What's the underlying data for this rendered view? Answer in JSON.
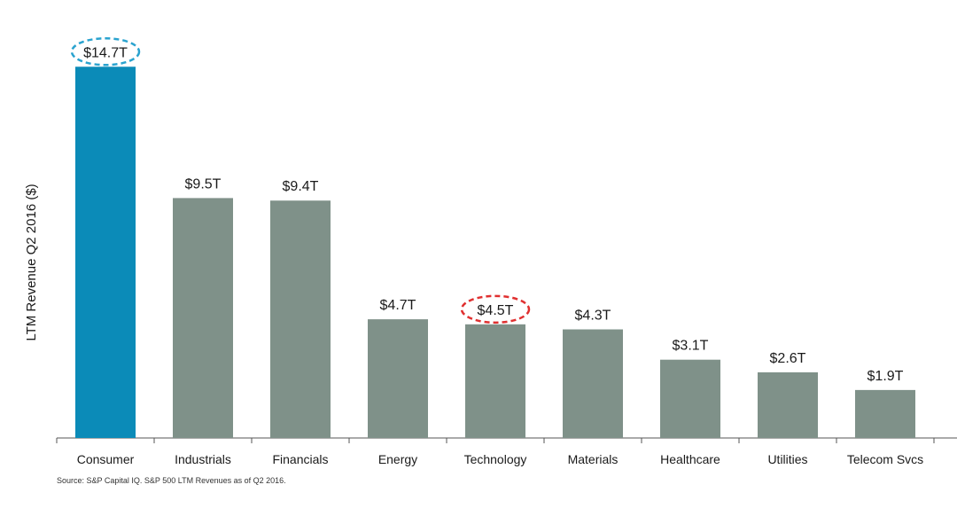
{
  "chart_data": {
    "type": "bar",
    "categories": [
      "Consumer",
      "Industrials",
      "Financials",
      "Energy",
      "Technology",
      "Materials",
      "Healthcare",
      "Utilities",
      "Telecom Svcs"
    ],
    "values": [
      14.7,
      9.5,
      9.4,
      4.7,
      4.5,
      4.3,
      3.1,
      2.6,
      1.9
    ],
    "data_labels": [
      "$14.7T",
      "$9.5T",
      "$9.4T",
      "$4.7T",
      "$4.5T",
      "$4.3T",
      "$3.1T",
      "$2.6T",
      "$1.9T"
    ],
    "ylabel": "LTM Revenue Q2 2016 ($)",
    "xlabel": "",
    "title": "",
    "ylim": [
      0,
      16.5
    ],
    "colors": {
      "default": "#7f9189",
      "highlight": "#0b8bb8",
      "highlight_circle": "#2aa3cf",
      "emphasis_circle": "#e03030"
    },
    "highlight_index": 0,
    "circled": [
      {
        "index": 0,
        "style": "dashed-ellipse",
        "color": "#2aa3cf"
      },
      {
        "index": 4,
        "style": "dashed-ellipse",
        "color": "#e03030"
      }
    ],
    "grid": false,
    "legend": "none"
  },
  "source_note": "Source: S&P Capital IQ. S&P 500 LTM Revenues as of Q2 2016."
}
